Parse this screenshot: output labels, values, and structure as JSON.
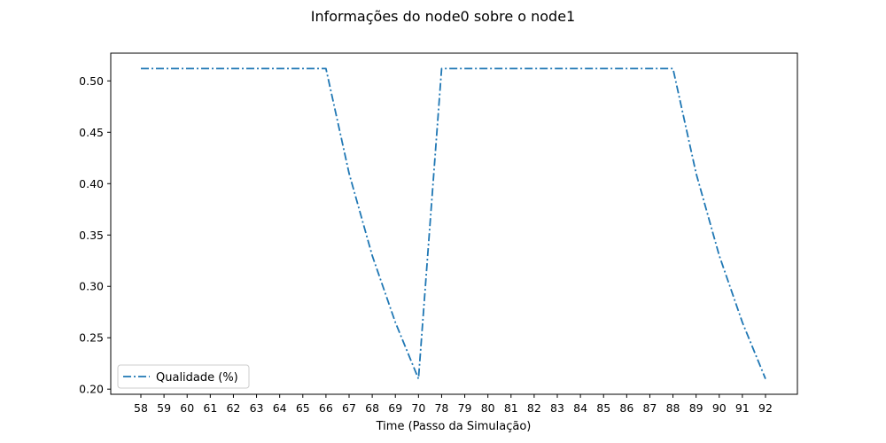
{
  "chart_data": {
    "type": "line",
    "title": "Informações do node0 sobre o node1",
    "xlabel": "Time (Passo da Simulação)",
    "ylabel": "",
    "categories": [
      "58",
      "59",
      "60",
      "61",
      "62",
      "63",
      "64",
      "65",
      "66",
      "67",
      "68",
      "69",
      "70",
      "78",
      "79",
      "80",
      "81",
      "82",
      "83",
      "84",
      "85",
      "86",
      "87",
      "88",
      "89",
      "90",
      "91",
      "92"
    ],
    "series": [
      {
        "name": "Qualidade (%)",
        "color": "#1f77b4",
        "line_style": "dashdot",
        "values": [
          0.512,
          0.512,
          0.512,
          0.512,
          0.512,
          0.512,
          0.512,
          0.512,
          0.512,
          0.41,
          0.33,
          0.265,
          0.21,
          0.512,
          0.512,
          0.512,
          0.512,
          0.512,
          0.512,
          0.512,
          0.512,
          0.512,
          0.512,
          0.512,
          0.41,
          0.33,
          0.265,
          0.21
        ]
      }
    ],
    "yticks": [
      "0.20",
      "0.25",
      "0.30",
      "0.35",
      "0.40",
      "0.45",
      "0.50"
    ],
    "ylim": [
      0.195,
      0.527
    ],
    "grid": false,
    "legend_position": "lower-left"
  }
}
